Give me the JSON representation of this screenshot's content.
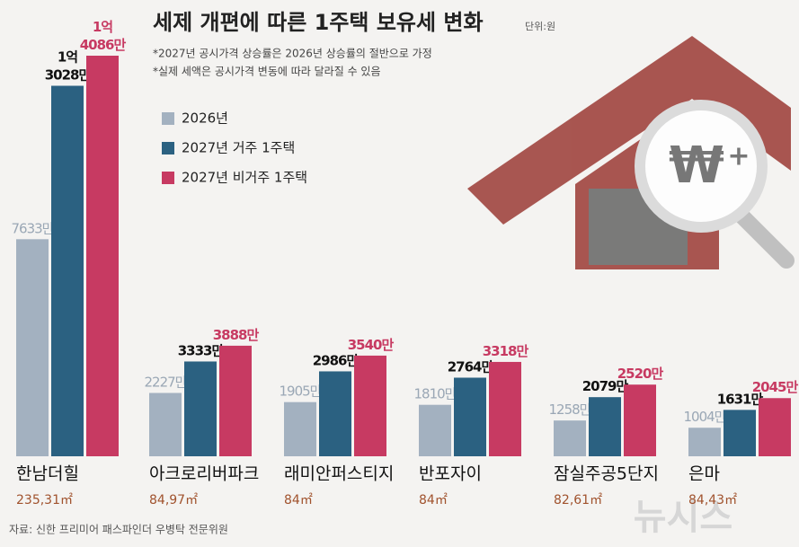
{
  "chart_data": {
    "type": "bar",
    "title": "세제 개편에 따른 1주택 보유세 변화",
    "unit": "단위:원",
    "notes": [
      "*2027년 공시가격 상승률은 2026년 상승률의 절반으로 가정",
      "*실제 세액은 공시가격 변동에 따라 달라질 수 있음"
    ],
    "categories": [
      "한남더힐",
      "아크로리버파크",
      "래미안퍼스티지",
      "반포자이",
      "잠실주공5단지",
      "은마"
    ],
    "subcategories": [
      "235,31㎡",
      "84,97㎡",
      "84㎡",
      "84㎡",
      "82,61㎡",
      "84,43㎡"
    ],
    "series": [
      {
        "name": "2026년",
        "color": "#a3b1c0",
        "values": [
          7633,
          2227,
          1905,
          1810,
          1258,
          1004
        ],
        "value_labels": [
          "7633만",
          "2227만",
          "1905만",
          "1810만",
          "1258만",
          "1004만"
        ]
      },
      {
        "name": "2027년 거주 1주택",
        "color": "#2b6181",
        "values": [
          13028,
          3333,
          2986,
          2764,
          2079,
          1631
        ],
        "value_labels": [
          "1억\n3028만",
          "3333만",
          "2986만",
          "2764만",
          "2079만",
          "1631만"
        ]
      },
      {
        "name": "2027년 비거주 1주택",
        "color": "#c73a62",
        "values": [
          14086,
          3888,
          3540,
          3318,
          2520,
          2045
        ],
        "value_labels": [
          "1억\n4086만",
          "3888만",
          "3540만",
          "3318만",
          "2520만",
          "2045만"
        ]
      }
    ],
    "source": "자료: 신한 프리미어 패스파인더 우병탁 전문위원",
    "watermark": "뉴시스"
  }
}
